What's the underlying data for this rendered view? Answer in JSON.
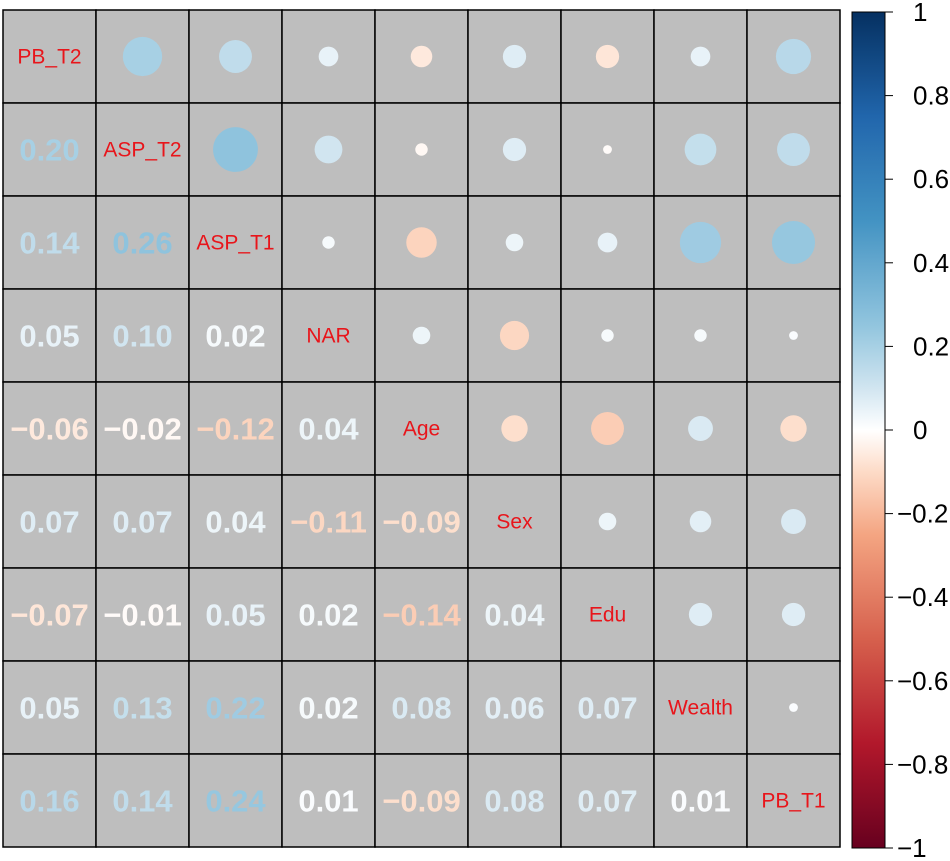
{
  "chart_data": {
    "type": "heatmap",
    "subtype": "correlation-matrix (circles upper, numbers lower)",
    "variables": [
      "PB_T2",
      "ASP_T2",
      "ASP_T1",
      "NAR",
      "Age",
      "Sex",
      "Edu",
      "Wealth",
      "PB_T1"
    ],
    "correlations": [
      [
        1.0,
        0.2,
        0.14,
        0.05,
        -0.06,
        0.07,
        -0.07,
        0.05,
        0.16
      ],
      [
        0.2,
        1.0,
        0.26,
        0.1,
        -0.02,
        0.07,
        -0.01,
        0.13,
        0.14
      ],
      [
        0.14,
        0.26,
        1.0,
        0.02,
        -0.12,
        0.04,
        0.05,
        0.22,
        0.24
      ],
      [
        0.05,
        0.1,
        0.02,
        1.0,
        0.04,
        -0.11,
        0.02,
        0.02,
        0.01
      ],
      [
        -0.06,
        -0.02,
        -0.12,
        0.04,
        1.0,
        -0.09,
        -0.14,
        0.08,
        -0.09
      ],
      [
        0.07,
        0.07,
        0.04,
        -0.11,
        -0.09,
        1.0,
        0.04,
        0.06,
        0.08
      ],
      [
        -0.07,
        -0.01,
        0.05,
        0.02,
        -0.14,
        0.04,
        1.0,
        0.07,
        0.07
      ],
      [
        0.05,
        0.13,
        0.22,
        0.02,
        0.08,
        0.06,
        0.07,
        1.0,
        0.01
      ],
      [
        0.16,
        0.14,
        0.24,
        0.01,
        -0.09,
        0.08,
        0.07,
        0.01,
        1.0
      ]
    ],
    "upper_triangle": "circles",
    "lower_triangle": "numbers",
    "diagonal": "variable names",
    "colorbar": {
      "range": [
        -1,
        1
      ],
      "ticks": [
        "1",
        "0.8",
        "0.6",
        "0.4",
        "0.2",
        "0",
        "−0.2",
        "−0.4",
        "−0.6",
        "−0.8",
        "−1"
      ],
      "tick_values": [
        1,
        0.8,
        0.6,
        0.4,
        0.2,
        0,
        -0.2,
        -0.4,
        -0.6,
        -0.8,
        -1
      ],
      "placement": "right"
    },
    "colors": {
      "cell_background": "#bebebe",
      "cell_border": "#000000",
      "diagonal_label": "#e8151b",
      "scale_negative_end": "#67001f",
      "scale_mid": "#ffffff",
      "scale_positive_end": "#053061"
    }
  }
}
